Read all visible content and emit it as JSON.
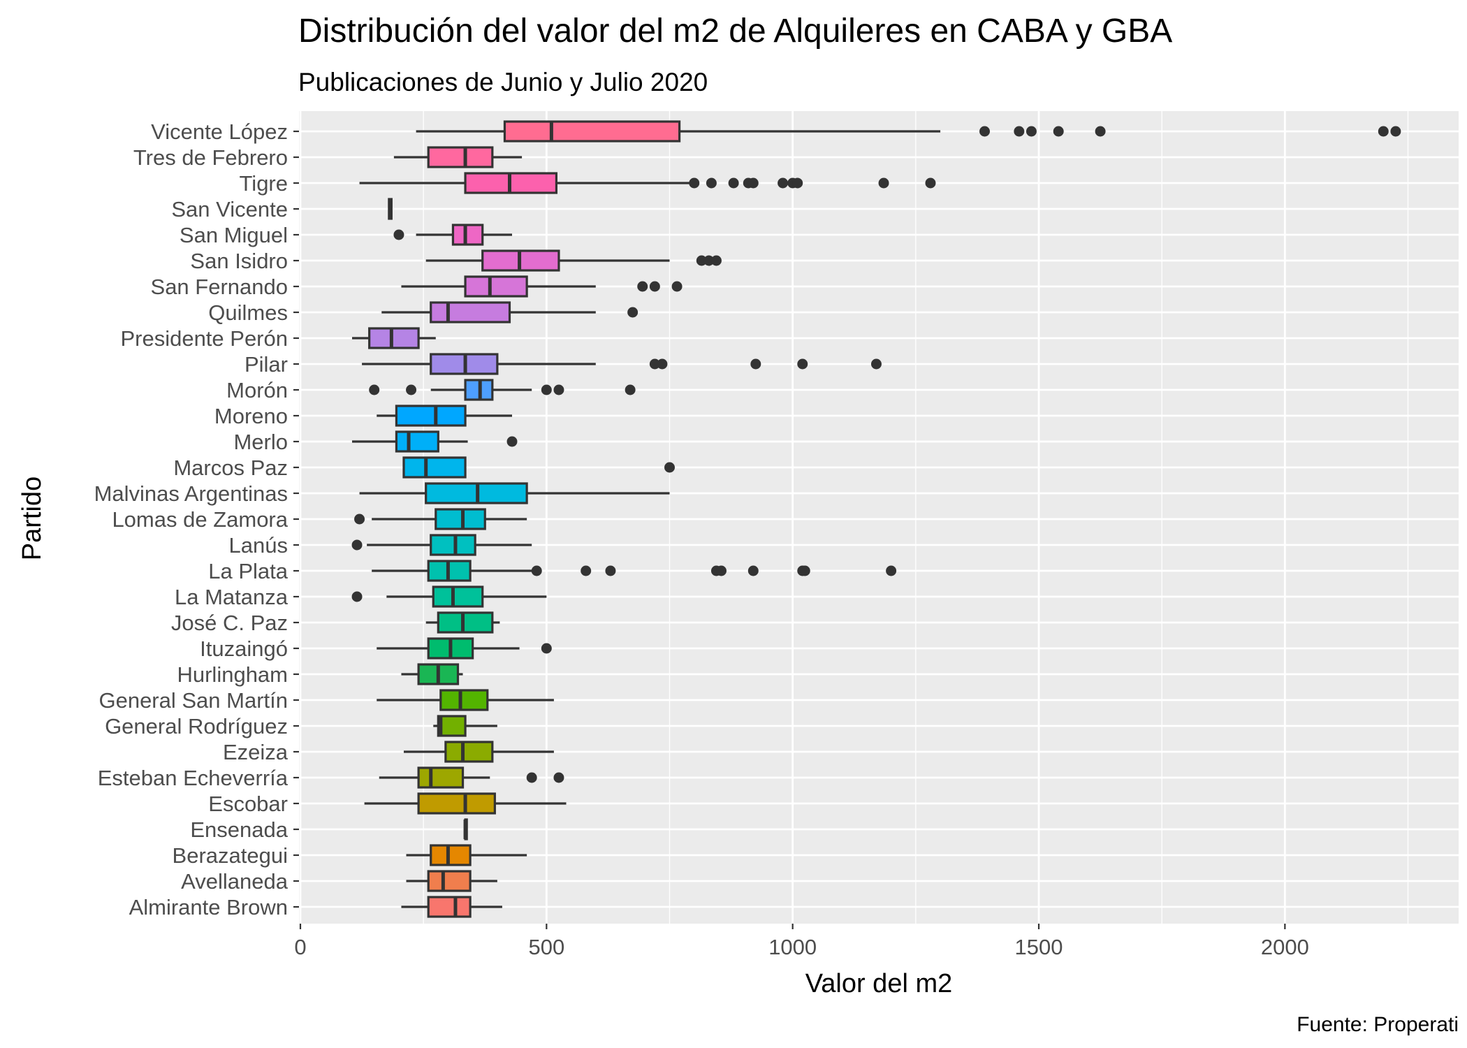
{
  "chart_data": {
    "type": "boxplot",
    "title": "Distribución del valor del m2 de Alquileres en CABA y GBA",
    "subtitle": "Publicaciones de Junio y Julio 2020",
    "xlabel": "Valor del m2",
    "ylabel": "Partido",
    "caption": "Fuente: Properati",
    "xlim": [
      0,
      2350
    ],
    "x_ticks": [
      0,
      500,
      1000,
      1500,
      2000
    ],
    "grid": true,
    "legend": "none",
    "categories": [
      {
        "name": "Vicente López",
        "color": "#FF6C91",
        "whisker_low": 235,
        "q1": 415,
        "median": 510,
        "q3": 770,
        "whisker_high": 1300,
        "outliers": [
          1390,
          1460,
          1485,
          1540,
          1625,
          2200,
          2225
        ]
      },
      {
        "name": "Tres de Febrero",
        "color": "#FF689F",
        "whisker_low": 190,
        "q1": 260,
        "median": 335,
        "q3": 390,
        "whisker_high": 450,
        "outliers": []
      },
      {
        "name": "Tigre",
        "color": "#FC61AD",
        "whisker_low": 120,
        "q1": 335,
        "median": 425,
        "q3": 520,
        "whisker_high": 800,
        "outliers": [
          800,
          835,
          880,
          910,
          920,
          980,
          1000,
          1010,
          1185,
          1280
        ]
      },
      {
        "name": "San Vicente",
        "color": "#F763BA",
        "whisker_low": 180,
        "q1": 180,
        "median": 182,
        "q3": 185,
        "whisker_high": 185,
        "outliers": []
      },
      {
        "name": "San Miguel",
        "color": "#EE67C5",
        "whisker_low": 235,
        "q1": 310,
        "median": 335,
        "q3": 370,
        "whisker_high": 430,
        "outliers": [
          200
        ]
      },
      {
        "name": "San Isidro",
        "color": "#E36DCF",
        "whisker_low": 255,
        "q1": 370,
        "median": 445,
        "q3": 525,
        "whisker_high": 750,
        "outliers": [
          815,
          830,
          845
        ]
      },
      {
        "name": "San Fernando",
        "color": "#D675D8",
        "whisker_low": 205,
        "q1": 335,
        "median": 385,
        "q3": 460,
        "whisker_high": 600,
        "outliers": [
          695,
          720,
          765
        ]
      },
      {
        "name": "Quilmes",
        "color": "#C67CDF",
        "whisker_low": 165,
        "q1": 265,
        "median": 300,
        "q3": 425,
        "whisker_high": 600,
        "outliers": [
          675
        ]
      },
      {
        "name": "Presidente Perón",
        "color": "#B584E5",
        "whisker_low": 105,
        "q1": 140,
        "median": 185,
        "q3": 240,
        "whisker_high": 275,
        "outliers": []
      },
      {
        "name": "Pilar",
        "color": "#A08BE9",
        "whisker_low": 125,
        "q1": 265,
        "median": 335,
        "q3": 400,
        "whisker_high": 600,
        "outliers": [
          720,
          735,
          925,
          1020,
          1170
        ]
      },
      {
        "name": "Morón",
        "color": "#4E9FFF",
        "whisker_low": 265,
        "q1": 335,
        "median": 365,
        "q3": 390,
        "whisker_high": 470,
        "outliers": [
          150,
          225,
          500,
          525,
          670
        ]
      },
      {
        "name": "Moreno",
        "color": "#00A7FF",
        "whisker_low": 155,
        "q1": 195,
        "median": 275,
        "q3": 335,
        "whisker_high": 430,
        "outliers": []
      },
      {
        "name": "Merlo",
        "color": "#00AFF8",
        "whisker_low": 105,
        "q1": 195,
        "median": 220,
        "q3": 280,
        "whisker_high": 340,
        "outliers": [
          430
        ]
      },
      {
        "name": "Marcos Paz",
        "color": "#00B5EC",
        "whisker_low": 210,
        "q1": 210,
        "median": 255,
        "q3": 335,
        "whisker_high": 335,
        "outliers": [
          750
        ]
      },
      {
        "name": "Malvinas Argentinas",
        "color": "#00BADF",
        "whisker_low": 120,
        "q1": 255,
        "median": 360,
        "q3": 460,
        "whisker_high": 750,
        "outliers": []
      },
      {
        "name": "Lomas de Zamora",
        "color": "#00BDD0",
        "whisker_low": 145,
        "q1": 275,
        "median": 330,
        "q3": 375,
        "whisker_high": 460,
        "outliers": [
          120
        ]
      },
      {
        "name": "Lanús",
        "color": "#00C0C0",
        "whisker_low": 135,
        "q1": 265,
        "median": 315,
        "q3": 355,
        "whisker_high": 470,
        "outliers": [
          115
        ]
      },
      {
        "name": "La Plata",
        "color": "#00C1AE",
        "whisker_low": 145,
        "q1": 260,
        "median": 300,
        "q3": 345,
        "whisker_high": 470,
        "outliers": [
          480,
          580,
          630,
          845,
          855,
          920,
          1020,
          1025,
          1200
        ]
      },
      {
        "name": "La Matanza",
        "color": "#00C19A",
        "whisker_low": 175,
        "q1": 270,
        "median": 310,
        "q3": 370,
        "whisker_high": 500,
        "outliers": [
          115
        ]
      },
      {
        "name": "José C. Paz",
        "color": "#00BF85",
        "whisker_low": 255,
        "q1": 280,
        "median": 330,
        "q3": 390,
        "whisker_high": 405,
        "outliers": []
      },
      {
        "name": "Ituzaingó",
        "color": "#00BC6E",
        "whisker_low": 155,
        "q1": 260,
        "median": 305,
        "q3": 350,
        "whisker_high": 445,
        "outliers": [
          500
        ]
      },
      {
        "name": "Hurlingham",
        "color": "#1AB654",
        "whisker_low": 205,
        "q1": 240,
        "median": 280,
        "q3": 320,
        "whisker_high": 330,
        "outliers": []
      },
      {
        "name": "General San Martín",
        "color": "#53B400",
        "whisker_low": 155,
        "q1": 285,
        "median": 325,
        "q3": 380,
        "whisker_high": 515,
        "outliers": []
      },
      {
        "name": "General Rodríguez",
        "color": "#72B000",
        "whisker_low": 270,
        "q1": 280,
        "median": 285,
        "q3": 335,
        "whisker_high": 400,
        "outliers": []
      },
      {
        "name": "Ezeiza",
        "color": "#8BAB00",
        "whisker_low": 210,
        "q1": 295,
        "median": 330,
        "q3": 390,
        "whisker_high": 515,
        "outliers": []
      },
      {
        "name": "Esteban Echeverría",
        "color": "#9DA700",
        "whisker_low": 160,
        "q1": 240,
        "median": 265,
        "q3": 330,
        "whisker_high": 385,
        "outliers": [
          470,
          525
        ]
      },
      {
        "name": "Escobar",
        "color": "#C09B00",
        "whisker_low": 130,
        "q1": 240,
        "median": 335,
        "q3": 395,
        "whisker_high": 540,
        "outliers": []
      },
      {
        "name": "Ensenada",
        "color": "#D89000",
        "whisker_low": 335,
        "q1": 335,
        "median": 335,
        "q3": 338,
        "whisker_high": 338,
        "outliers": []
      },
      {
        "name": "Berazategui",
        "color": "#E58700",
        "whisker_low": 215,
        "q1": 265,
        "median": 300,
        "q3": 345,
        "whisker_high": 460,
        "outliers": []
      },
      {
        "name": "Avellaneda",
        "color": "#F07E4D",
        "whisker_low": 215,
        "q1": 260,
        "median": 290,
        "q3": 345,
        "whisker_high": 400,
        "outliers": []
      },
      {
        "name": "Almirante Brown",
        "color": "#F8766D",
        "whisker_low": 205,
        "q1": 260,
        "median": 315,
        "q3": 345,
        "whisker_high": 410,
        "outliers": []
      }
    ]
  }
}
